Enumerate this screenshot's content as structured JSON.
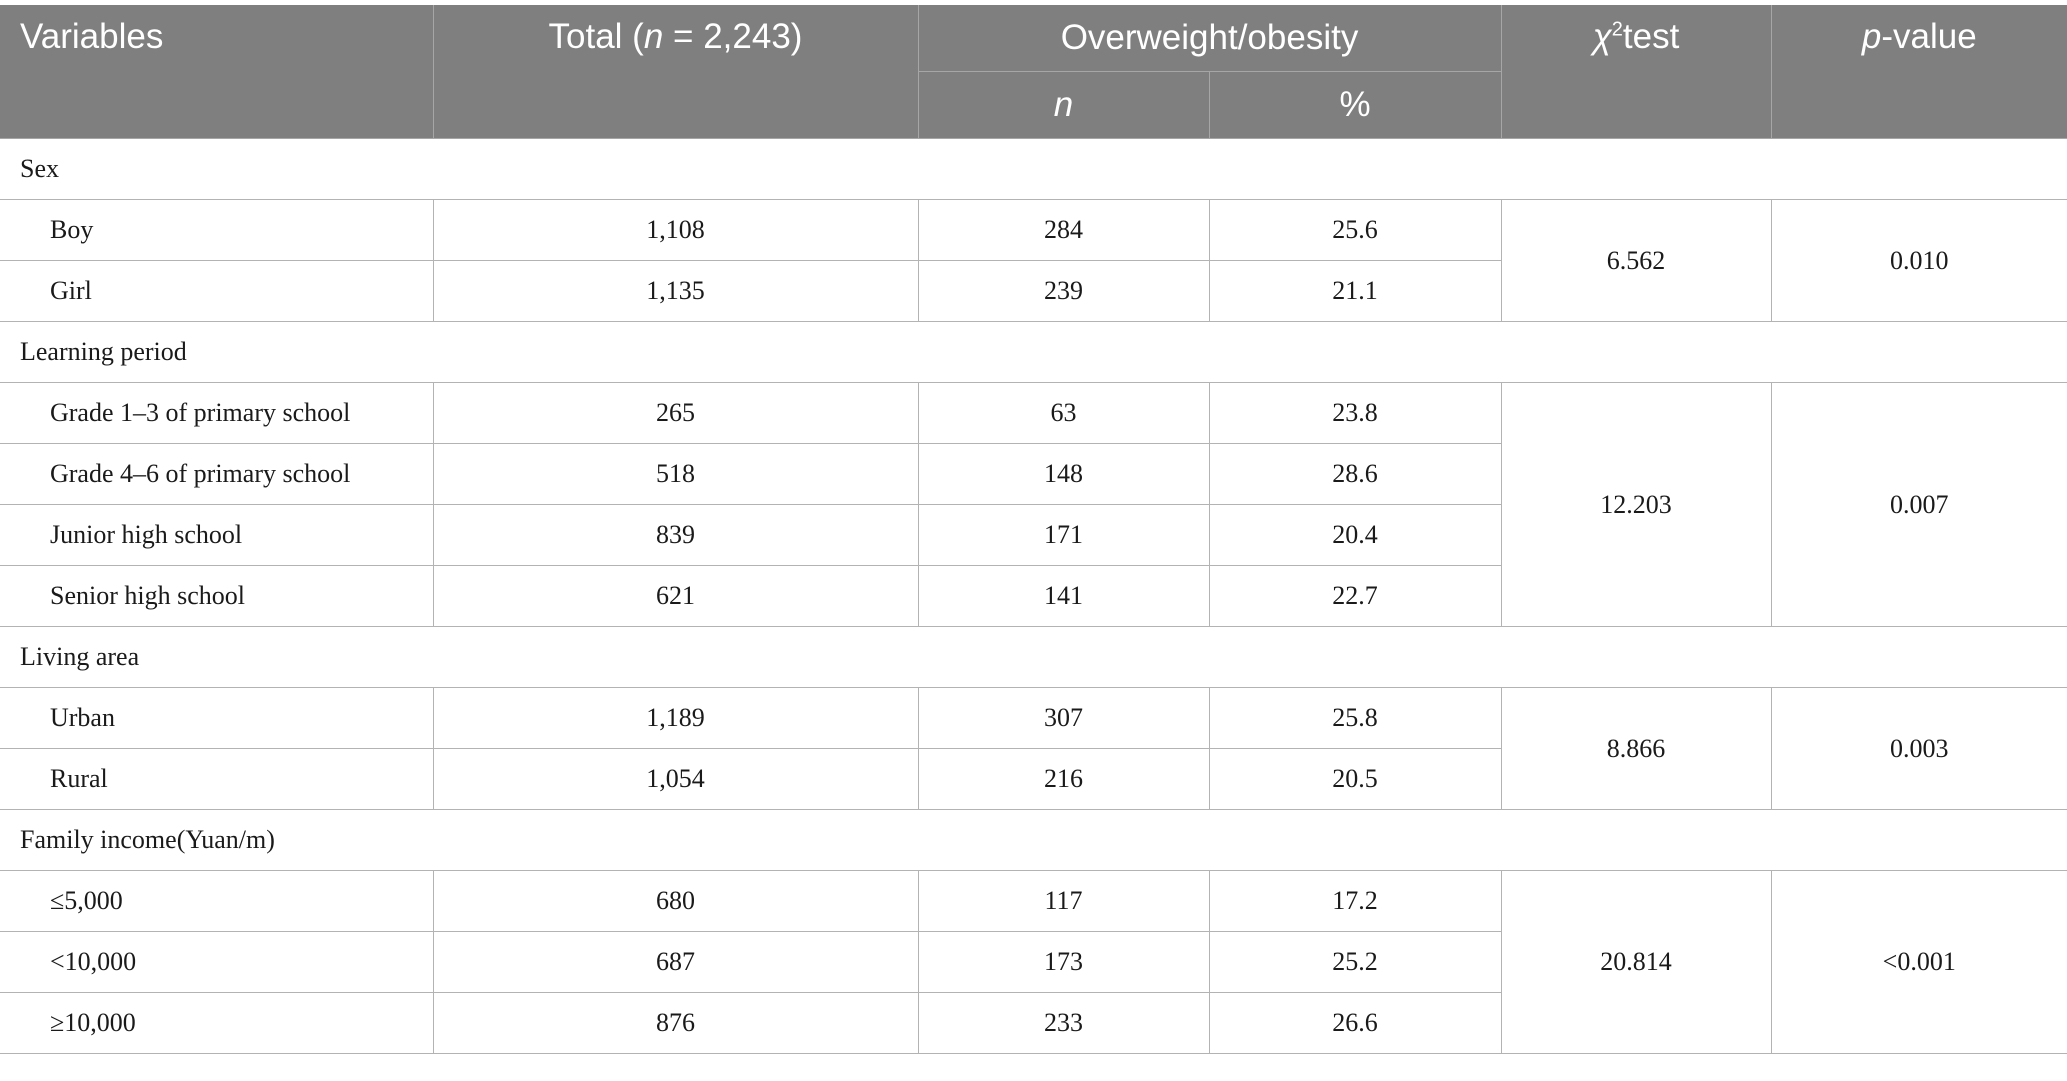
{
  "header": {
    "variables": "Variables",
    "total_prefix": "Total (",
    "total_n": "n",
    "total_suffix": " = 2,243)",
    "overweight": "Overweight/obesity",
    "sub_n": "n",
    "sub_pct": "%",
    "chi_symbol": "χ",
    "chi_sup": "2",
    "chi_suffix": "test",
    "p_italic": "p",
    "p_suffix": "-value"
  },
  "groups": [
    {
      "label": "Sex",
      "chi": "6.562",
      "p": "0.010",
      "rows": [
        {
          "label": "Boy",
          "total": "1,108",
          "n": "284",
          "pct": "25.6"
        },
        {
          "label": "Girl",
          "total": "1,135",
          "n": "239",
          "pct": "21.1"
        }
      ]
    },
    {
      "label": "Learning period",
      "chi": "12.203",
      "p": "0.007",
      "rows": [
        {
          "label": "Grade 1–3 of primary school",
          "total": "265",
          "n": "63",
          "pct": "23.8"
        },
        {
          "label": "Grade 4–6 of primary school",
          "total": "518",
          "n": "148",
          "pct": "28.6"
        },
        {
          "label": "Junior high school",
          "total": "839",
          "n": "171",
          "pct": "20.4"
        },
        {
          "label": "Senior high school",
          "total": "621",
          "n": "141",
          "pct": "22.7"
        }
      ]
    },
    {
      "label": "Living area",
      "chi": "8.866",
      "p": "0.003",
      "rows": [
        {
          "label": "Urban",
          "total": "1,189",
          "n": "307",
          "pct": "25.8"
        },
        {
          "label": "Rural",
          "total": "1,054",
          "n": "216",
          "pct": "20.5"
        }
      ]
    },
    {
      "label": "Family income(Yuan/m)",
      "chi": "20.814",
      "p": "<0.001",
      "rows": [
        {
          "label": "≤5,000",
          "total": "680",
          "n": "117",
          "pct": "17.2"
        },
        {
          "label": "<10,000",
          "total": "687",
          "n": "173",
          "pct": "25.2"
        },
        {
          "label": "≥10,000",
          "total": "876",
          "n": "233",
          "pct": "26.6"
        }
      ]
    }
  ]
}
